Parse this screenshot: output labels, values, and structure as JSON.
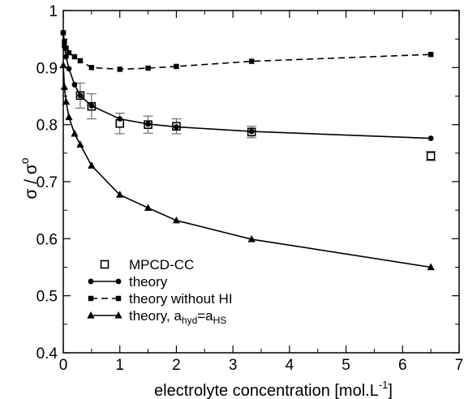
{
  "chart_data": {
    "type": "line",
    "xlabel": "electrolyte concentration [mol.L",
    "xlabel_sup": "-1",
    "xlabel_close": "]",
    "ylabel": "σ / σ",
    "ylabel_sup": "o",
    "xlim": [
      0,
      7
    ],
    "ylim": [
      0.4,
      1.0
    ],
    "x_ticks": [
      0,
      1,
      2,
      3,
      4,
      5,
      6,
      7
    ],
    "y_ticks": [
      0.4,
      0.5,
      0.6,
      0.7,
      0.8,
      0.9,
      1.0
    ],
    "x_tick_labels": [
      "0",
      "1",
      "2",
      "3",
      "4",
      "5",
      "6",
      "7"
    ],
    "y_tick_labels": [
      "0.4",
      "0.5",
      "0.6",
      "0.7",
      "0.8",
      "0.9",
      "1"
    ],
    "grid": false,
    "legend_position": "bottom-left",
    "series": [
      {
        "name": "MPCD-CC",
        "style": "open-square-errorbar",
        "x": [
          0.3,
          0.5,
          1.0,
          1.5,
          2.0,
          3.33,
          6.5
        ],
        "y": [
          0.851,
          0.832,
          0.802,
          0.8,
          0.797,
          0.787,
          0.745
        ],
        "err": [
          0.022,
          0.022,
          0.018,
          0.015,
          0.013,
          0.01,
          0.008
        ]
      },
      {
        "name": "theory",
        "style": "solid-circle",
        "x": [
          0.0,
          0.02,
          0.05,
          0.1,
          0.2,
          0.3,
          0.5,
          1.0,
          1.5,
          2.0,
          3.33,
          6.5
        ],
        "y": [
          0.961,
          0.937,
          0.919,
          0.898,
          0.87,
          0.851,
          0.833,
          0.81,
          0.801,
          0.796,
          0.788,
          0.776
        ]
      },
      {
        "name": "theory without HI",
        "style": "dashed-square",
        "x": [
          0.0,
          0.02,
          0.05,
          0.1,
          0.2,
          0.3,
          0.5,
          1.0,
          1.5,
          2.0,
          3.33,
          6.5
        ],
        "y": [
          0.961,
          0.945,
          0.934,
          0.926,
          0.919,
          0.912,
          0.9,
          0.897,
          0.899,
          0.902,
          0.911,
          0.923
        ]
      },
      {
        "name": "theory, a",
        "name_sub1": "hyd",
        "name_mid": "=a",
        "name_sub2": "HS",
        "style": "solid-triangle",
        "x": [
          0.0,
          0.02,
          0.05,
          0.1,
          0.2,
          0.3,
          0.5,
          1.0,
          1.5,
          2.0,
          3.33,
          6.5
        ],
        "y": [
          0.904,
          0.866,
          0.84,
          0.813,
          0.784,
          0.765,
          0.728,
          0.677,
          0.654,
          0.632,
          0.599,
          0.55
        ]
      }
    ]
  }
}
